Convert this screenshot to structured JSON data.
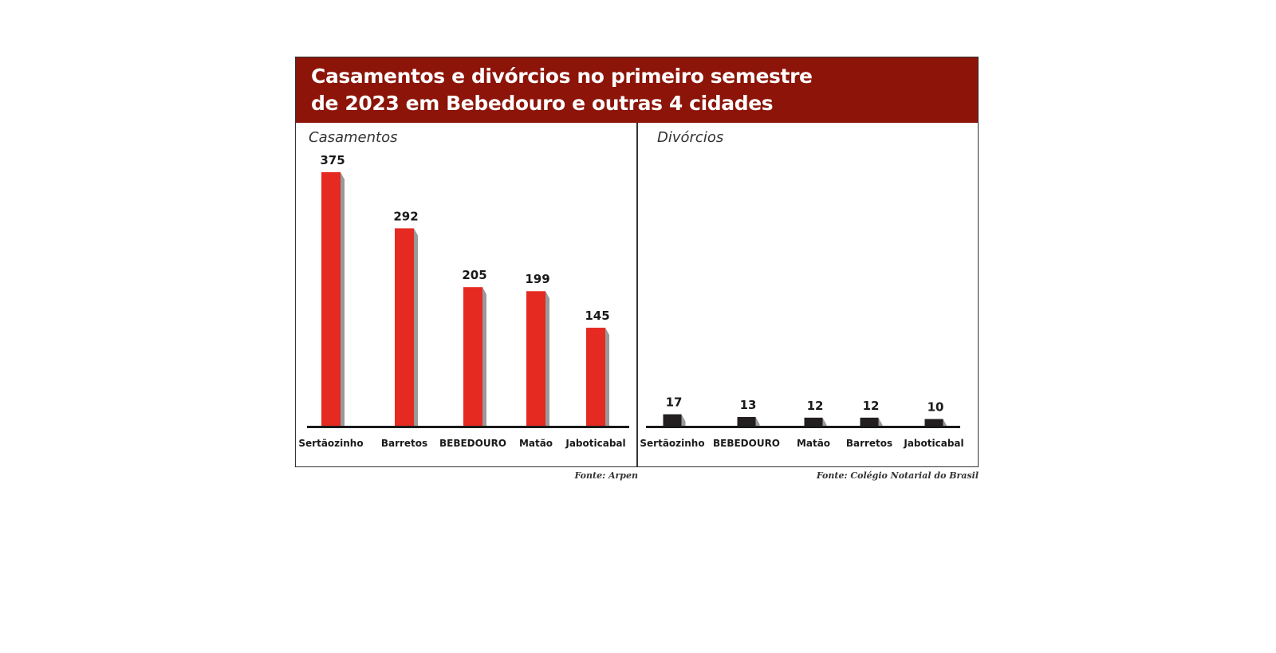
{
  "title": {
    "line1": "Casamentos e divórcios no primeiro semestre",
    "line2": "de 2023 em Bebedouro e outras 4 cidades"
  },
  "colors": {
    "header": "#8c1408",
    "marriage_bar": "#e52a22",
    "divorce_bar": "#231f20",
    "shadow": "#9a9a9a"
  },
  "chart_data": [
    {
      "type": "bar",
      "title": "Casamentos",
      "categories": [
        "Sertãozinho",
        "Barretos",
        "BEBEDOURO",
        "Matão",
        "Jaboticabal"
      ],
      "values": [
        375,
        292,
        205,
        199,
        145
      ],
      "xlabel": "",
      "ylabel": "",
      "ylim": [
        0,
        375
      ],
      "grid": false,
      "source": "Fonte: Arpen"
    },
    {
      "type": "bar",
      "title": "Divórcios",
      "categories": [
        "Sertãozinho",
        "BEBEDOURO",
        "Matão",
        "Barretos",
        "Jaboticabal"
      ],
      "values": [
        17,
        13,
        12,
        12,
        10
      ],
      "xlabel": "",
      "ylabel": "",
      "ylim": [
        0,
        375
      ],
      "grid": false,
      "source": "Fonte: Colégio Notarial do Brasil"
    }
  ]
}
